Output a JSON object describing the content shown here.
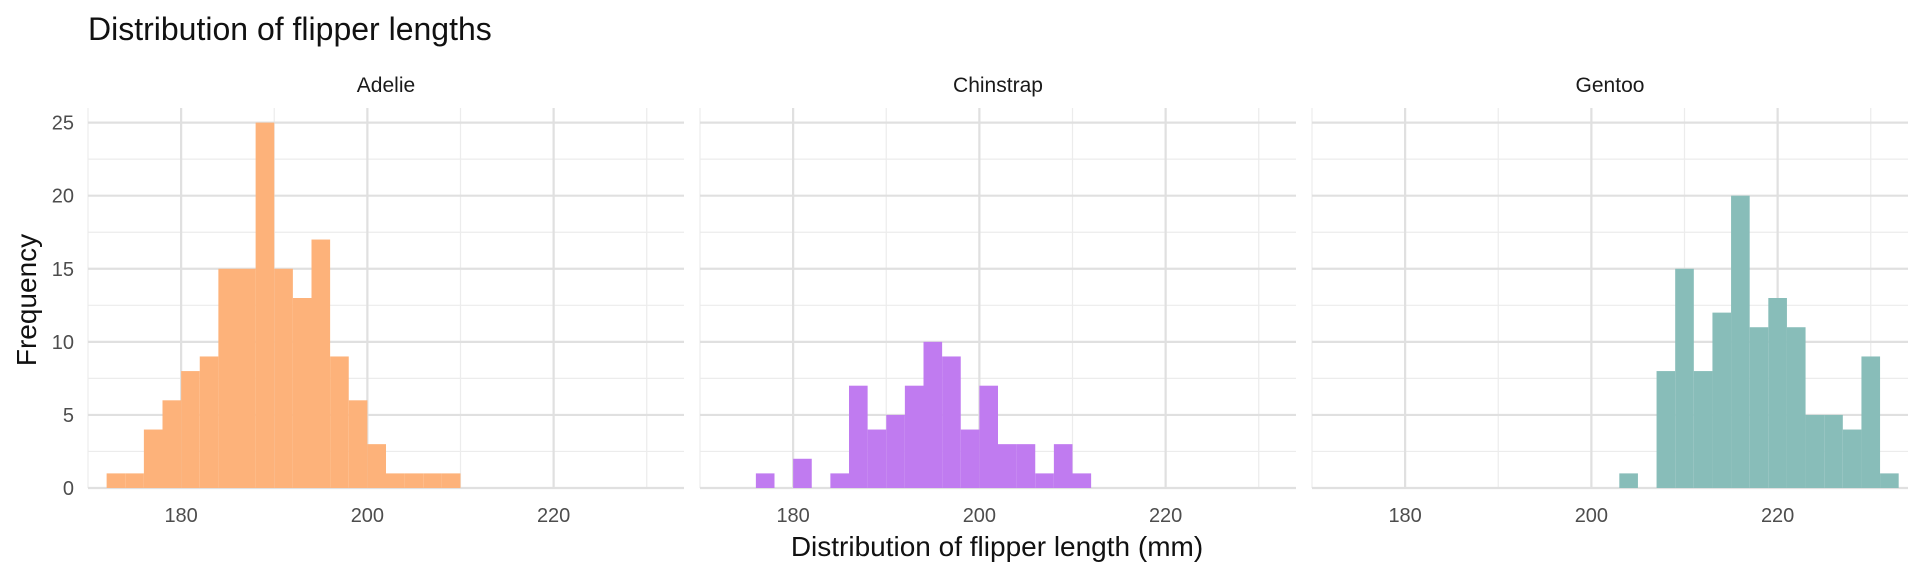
{
  "chart_data": {
    "type": "histogram",
    "title": "Distribution of flipper lengths",
    "xlabel": "Distribution of flipper length (mm)",
    "ylabel": "Frequency",
    "facet_by": "species",
    "bin_width": 2,
    "xlim": [
      170,
      234
    ],
    "ylim": [
      0,
      26
    ],
    "x_ticks": [
      180,
      200,
      220
    ],
    "y_ticks": [
      0,
      5,
      10,
      15,
      20,
      25
    ],
    "grid": true,
    "legend": "none",
    "panels": [
      {
        "name": "Adelie",
        "color": "#fdb27a",
        "bins": [
          {
            "start": 172,
            "count": 1
          },
          {
            "start": 174,
            "count": 1
          },
          {
            "start": 176,
            "count": 4
          },
          {
            "start": 178,
            "count": 6
          },
          {
            "start": 180,
            "count": 8
          },
          {
            "start": 182,
            "count": 9
          },
          {
            "start": 184,
            "count": 15
          },
          {
            "start": 186,
            "count": 15
          },
          {
            "start": 188,
            "count": 25
          },
          {
            "start": 190,
            "count": 15
          },
          {
            "start": 192,
            "count": 13
          },
          {
            "start": 194,
            "count": 17
          },
          {
            "start": 196,
            "count": 9
          },
          {
            "start": 198,
            "count": 6
          },
          {
            "start": 200,
            "count": 3
          },
          {
            "start": 202,
            "count": 1
          },
          {
            "start": 204,
            "count": 1
          },
          {
            "start": 206,
            "count": 1
          },
          {
            "start": 208,
            "count": 1
          }
        ]
      },
      {
        "name": "Chinstrap",
        "color": "#c07bf0",
        "bins": [
          {
            "start": 176,
            "count": 1
          },
          {
            "start": 178,
            "count": 0
          },
          {
            "start": 180,
            "count": 2
          },
          {
            "start": 182,
            "count": 0
          },
          {
            "start": 184,
            "count": 1
          },
          {
            "start": 186,
            "count": 7
          },
          {
            "start": 188,
            "count": 4
          },
          {
            "start": 190,
            "count": 5
          },
          {
            "start": 192,
            "count": 7
          },
          {
            "start": 194,
            "count": 10
          },
          {
            "start": 196,
            "count": 9
          },
          {
            "start": 198,
            "count": 4
          },
          {
            "start": 200,
            "count": 7
          },
          {
            "start": 202,
            "count": 3
          },
          {
            "start": 204,
            "count": 3
          },
          {
            "start": 206,
            "count": 1
          },
          {
            "start": 208,
            "count": 3
          },
          {
            "start": 210,
            "count": 1
          }
        ]
      },
      {
        "name": "Gentoo",
        "color": "#88bdb9",
        "bins": [
          {
            "start": 203,
            "count": 1
          },
          {
            "start": 205,
            "count": 0
          },
          {
            "start": 207,
            "count": 8
          },
          {
            "start": 209,
            "count": 15
          },
          {
            "start": 211,
            "count": 8
          },
          {
            "start": 213,
            "count": 12
          },
          {
            "start": 215,
            "count": 20
          },
          {
            "start": 217,
            "count": 11
          },
          {
            "start": 219,
            "count": 13
          },
          {
            "start": 221,
            "count": 11
          },
          {
            "start": 223,
            "count": 5
          },
          {
            "start": 225,
            "count": 5
          },
          {
            "start": 227,
            "count": 4
          },
          {
            "start": 229,
            "count": 9
          },
          {
            "start": 231,
            "count": 1
          }
        ]
      }
    ]
  }
}
